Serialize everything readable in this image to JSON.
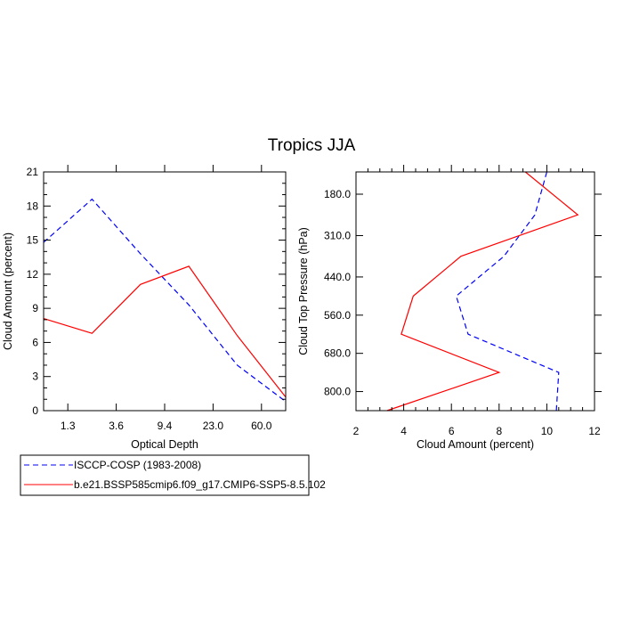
{
  "title": "Tropics JJA",
  "colors": {
    "obs": "#0000ff",
    "model": "#ff0000",
    "axis": "#000000"
  },
  "legend": {
    "entries": [
      {
        "label": "ISCCP-COSP (1983-2008)",
        "color": "#0000ff",
        "dash": "dashed"
      },
      {
        "label": "b.e21.BSSP585cmip6.f09_g17.CMIP6-SSP5-8.5.102",
        "color": "#ff0000",
        "dash": "solid"
      }
    ]
  },
  "chart_data": [
    {
      "type": "line",
      "xlabel": "Optical Depth",
      "ylabel": "Cloud Amount (percent)",
      "x_ticklabels": [
        "1.3",
        "3.6",
        "9.4",
        "23.0",
        "60.0"
      ],
      "x_ticks": [
        1,
        2,
        3,
        4,
        5
      ],
      "xlim": [
        0.5,
        5.5
      ],
      "y_ticklabels": [
        "0",
        "3",
        "6",
        "9",
        "12",
        "15",
        "18",
        "21"
      ],
      "y_ticks": [
        0,
        3,
        6,
        9,
        12,
        15,
        18,
        21
      ],
      "ylim": [
        0,
        21
      ],
      "x": [
        0.5,
        1.5,
        2.5,
        3.5,
        4.5,
        5.5
      ],
      "series": [
        {
          "name": "ISCCP-COSP (1983-2008)",
          "color": "#0000ff",
          "dash": "dashed",
          "values": [
            14.8,
            18.6,
            13.8,
            9.3,
            4.0,
            0.8
          ]
        },
        {
          "name": "b.e21.BSSP585cmip6.f09_g17.CMIP6-SSP5-8.5.102",
          "color": "#ff0000",
          "dash": "solid",
          "values": [
            8.1,
            6.8,
            11.1,
            12.7,
            6.6,
            1.2
          ]
        }
      ]
    },
    {
      "type": "line",
      "xlabel": "Cloud Amount (percent)",
      "ylabel": "Cloud Top Pressure (hPa)",
      "x_ticklabels": [
        "2",
        "4",
        "6",
        "8",
        "10",
        "12"
      ],
      "x_ticks": [
        2,
        4,
        6,
        8,
        10,
        12
      ],
      "xlim": [
        2,
        12
      ],
      "y_ticklabels": [
        "180.0",
        "310.0",
        "440.0",
        "560.0",
        "680.0",
        "800.0"
      ],
      "y_ticks": [
        180,
        310,
        440,
        560,
        680,
        800
      ],
      "ylim": [
        860,
        110
      ],
      "y": [
        110,
        245,
        375,
        500,
        620,
        740,
        860
      ],
      "series": [
        {
          "name": "ISCCP-COSP (1983-2008)",
          "color": "#0000ff",
          "dash": "dashed",
          "values": [
            10.0,
            9.5,
            8.2,
            6.2,
            6.7,
            10.5,
            10.4
          ]
        },
        {
          "name": "b.e21.BSSP585cmip6.f09_g17.CMIP6-SSP5-8.5.102",
          "color": "#ff0000",
          "dash": "solid",
          "values": [
            9.1,
            11.3,
            6.4,
            4.4,
            3.9,
            8.0,
            3.3
          ]
        }
      ]
    }
  ]
}
